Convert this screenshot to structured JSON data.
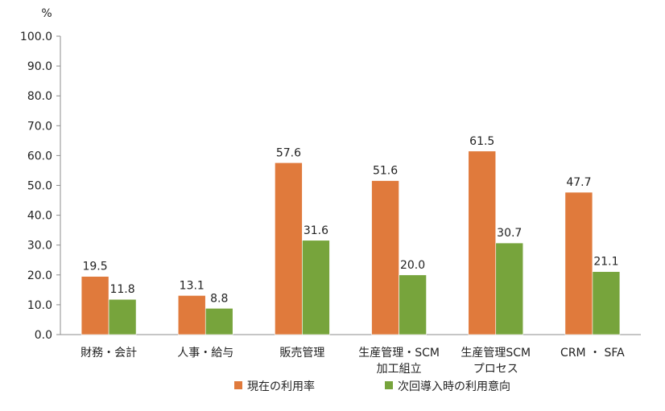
{
  "chart_data": {
    "type": "bar",
    "title": "",
    "xlabel": "",
    "ylabel": "%",
    "ylim": [
      0,
      100
    ],
    "yticks": [
      "0.0",
      "10.0",
      "20.0",
      "30.0",
      "40.0",
      "50.0",
      "60.0",
      "70.0",
      "80.0",
      "90.0",
      "100.0"
    ],
    "grid": false,
    "legend_position": "bottom",
    "categories": [
      [
        "財務・会計"
      ],
      [
        "人事・給与"
      ],
      [
        "販売管理"
      ],
      [
        "生産管理・SCM",
        "加工組立"
      ],
      [
        "生産管理SCM",
        "プロセス"
      ],
      [
        "CRM ・ SFA"
      ]
    ],
    "series": [
      {
        "name": "現在の利用率",
        "color": "#E07A3C",
        "values": [
          19.5,
          13.1,
          57.6,
          51.6,
          61.5,
          47.7
        ],
        "labels": [
          "19.5",
          "13.1",
          "57.6",
          "51.6",
          "61.5",
          "47.7"
        ]
      },
      {
        "name": "次回導入時の利用意向",
        "color": "#77A43C",
        "values": [
          11.8,
          8.8,
          31.6,
          20.0,
          30.7,
          21.1
        ],
        "labels": [
          "11.8",
          "8.8",
          "31.6",
          "20.0",
          "30.7",
          "21.1"
        ]
      }
    ]
  }
}
